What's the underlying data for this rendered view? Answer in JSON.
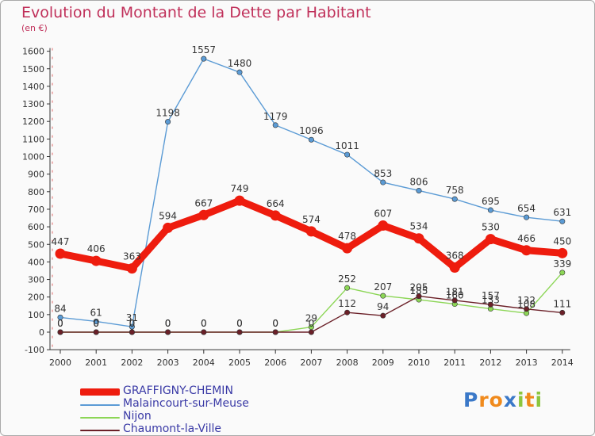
{
  "header": {
    "title": "Evolution du Montant de la Dette par Habitant",
    "unit": "(en €)"
  },
  "brand": {
    "logo": {
      "letters": [
        {
          "ch": "P",
          "color": "#3a78c8"
        },
        {
          "ch": "r",
          "color": "#f08a1c"
        },
        {
          "ch": "o",
          "color": "#f08a1c"
        },
        {
          "ch": "x",
          "color": "#3a78c8"
        },
        {
          "ch": "i",
          "color": "#8cc63e"
        },
        {
          "ch": "t",
          "color": "#f08a1c"
        },
        {
          "ch": "i",
          "color": "#8cc63e"
        }
      ]
    }
  },
  "chart_data": {
    "type": "line",
    "x": [
      "2000",
      "2001",
      "2002",
      "2003",
      "2004",
      "2005",
      "2006",
      "2007",
      "2008",
      "2009",
      "2010",
      "2011",
      "2012",
      "2013",
      "2014"
    ],
    "ylim": [
      -100,
      1600
    ],
    "yticks": [
      -100,
      0,
      100,
      200,
      300,
      400,
      500,
      600,
      700,
      800,
      900,
      1000,
      1100,
      1200,
      1300,
      1400,
      1500,
      1600
    ],
    "grid": false,
    "legend_position": "bottom-left",
    "series": [
      {
        "name": "Malaincourt-sur-Meuse",
        "color": "#5b9bd5",
        "emphasis": false,
        "x_index": [
          0,
          1,
          2,
          3,
          4,
          5,
          6,
          7,
          8,
          9,
          10,
          11,
          12,
          13,
          14
        ],
        "values": [
          84,
          61,
          31,
          1198,
          1557,
          1480,
          1179,
          1096,
          1011,
          853,
          806,
          758,
          695,
          654,
          631
        ],
        "labels": [
          "84",
          "61",
          "31",
          "1198",
          "1557",
          "1480",
          "1179",
          "1096",
          "1011",
          "853",
          "806",
          "758",
          "695",
          "654",
          "631"
        ]
      },
      {
        "name": "Nijon",
        "color": "#8cd656",
        "emphasis": false,
        "x_index": [
          0,
          1,
          2,
          3,
          4,
          5,
          6,
          7,
          8,
          9,
          10,
          11,
          12,
          13,
          14
        ],
        "values": [
          0,
          0,
          0,
          0,
          0,
          0,
          0,
          29,
          252,
          207,
          185,
          160,
          133,
          108,
          339
        ],
        "labels": [
          "0",
          "0",
          "0",
          "0",
          "0",
          "0",
          "0",
          "29",
          "252",
          "207",
          "185",
          "160",
          "133",
          "108",
          "339"
        ]
      },
      {
        "name": "Chaumont-la-Ville",
        "color": "#6b2028",
        "emphasis": false,
        "x_index": [
          0,
          1,
          2,
          3,
          4,
          5,
          6,
          7,
          8,
          9,
          10,
          11,
          12,
          13,
          14
        ],
        "values": [
          0,
          0,
          0,
          0,
          0,
          0,
          0,
          0,
          112,
          94,
          205,
          181,
          157,
          132,
          111
        ],
        "labels": [
          "0",
          "0",
          "0",
          "0",
          "0",
          "0",
          "0",
          "0",
          "112",
          "94",
          "205",
          "181",
          "157",
          "132",
          "111"
        ]
      },
      {
        "name": "GRAFFIGNY-CHEMIN",
        "color": "#ee1c0e",
        "emphasis": true,
        "x_index": [
          0,
          1,
          2,
          3,
          4,
          5,
          6,
          7,
          8,
          9,
          10,
          11,
          12,
          13,
          14
        ],
        "values": [
          447,
          406,
          363,
          594,
          667,
          749,
          664,
          574,
          478,
          607,
          534,
          368,
          530,
          466,
          450
        ],
        "labels": [
          "447",
          "406",
          "363",
          "594",
          "667",
          "749",
          "664",
          "574",
          "478",
          "607",
          "534",
          "368",
          "530",
          "466",
          "450"
        ]
      }
    ],
    "legend_order": [
      "GRAFFIGNY-CHEMIN",
      "Malaincourt-sur-Meuse",
      "Nijon",
      "Chaumont-la-Ville"
    ]
  }
}
